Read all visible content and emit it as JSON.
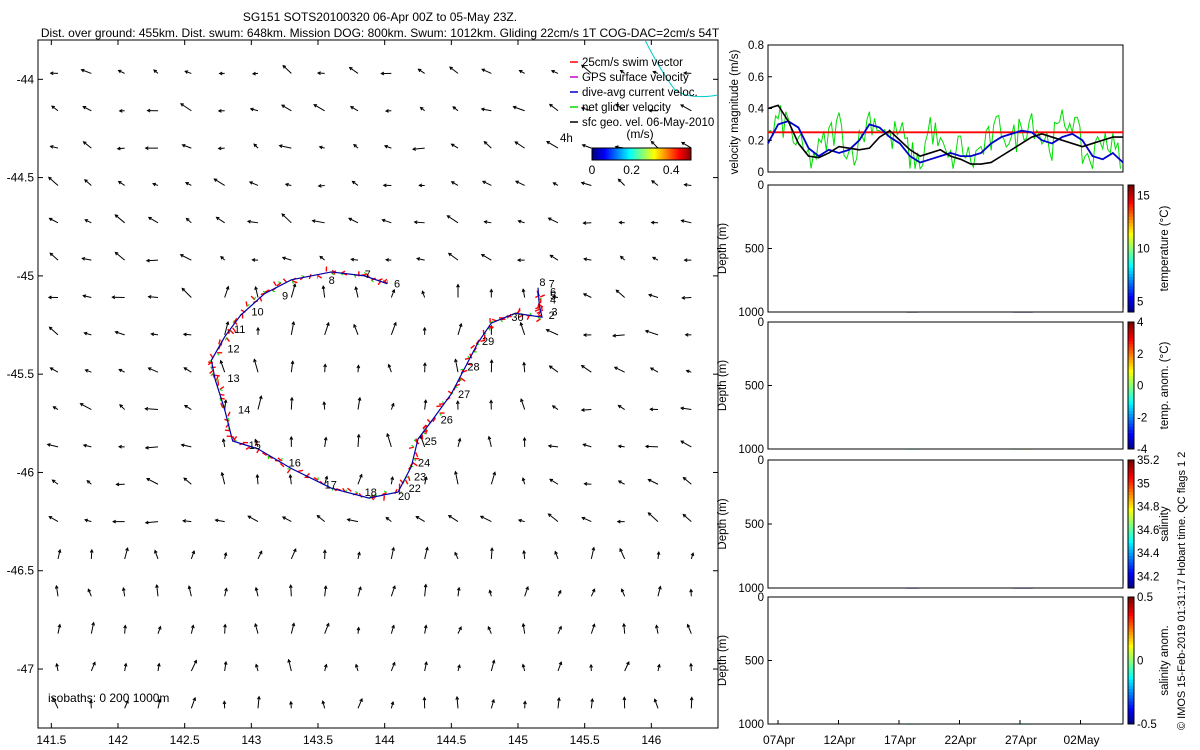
{
  "title": {
    "line1": "SG151 SOTS20100320 06-Apr 00Z to 05-May 23Z.",
    "line2": "Dist. over ground: 455km. Dist. swum: 648km. Mission DOG: 800km. Swum: 1012km. Gliding 22cm/s 1T COG-DAC=2cm/s 54T"
  },
  "credit": "© IMOS 15-Feb-2019 01:31:17 Hobart time. QC flags 1  2",
  "colors": {
    "swim_vector": "#ff0000",
    "gps_surface_velocity": "#cc00cc",
    "dive_avg_current": "#0000cc",
    "net_glider_velocity": "#00dd00",
    "sfc_geo_velocity": "#000000",
    "track": "#0000aa",
    "mean_line": "#ff0000",
    "smooth_line": "#000000",
    "isobath": "#00cccc"
  },
  "chart_data": [
    {
      "type": "scatter",
      "name": "map",
      "xlim": [
        141.4,
        146.5
      ],
      "ylim": [
        -47.3,
        -43.8
      ],
      "x_ticks": [
        "141.5",
        "142",
        "142.5",
        "143",
        "143.5",
        "144",
        "144.5",
        "145",
        "145.5",
        "146"
      ],
      "y_ticks": [
        "-44",
        "-44.5",
        "-45",
        "-45.5",
        "-46",
        "-46.5",
        "-47"
      ],
      "legend": {
        "placement": "top-right",
        "entries": [
          "25cm/s swim vector",
          "GPS surface velocity",
          "dive-avg current veloc.",
          "net glider velocity",
          "sfc geo. vel. 06-May-2010 4h"
        ]
      },
      "colorbar": {
        "label": "(m/s)",
        "ticks": [
          "0",
          "0.2",
          "0.4"
        ],
        "range": [
          0,
          0.5
        ]
      },
      "isobath_note": "isobaths: 0  200  1000m",
      "track": [
        [
          144.02,
          -45.04
        ],
        [
          143.85,
          -45.0
        ],
        [
          143.6,
          -44.98
        ],
        [
          143.3,
          -45.02
        ],
        [
          143.1,
          -45.09
        ],
        [
          142.92,
          -45.2
        ],
        [
          142.8,
          -45.31
        ],
        [
          142.7,
          -45.43
        ],
        [
          142.73,
          -45.53
        ],
        [
          142.8,
          -45.68
        ],
        [
          142.86,
          -45.84
        ],
        [
          143.05,
          -45.88
        ],
        [
          143.3,
          -45.98
        ],
        [
          143.6,
          -46.08
        ],
        [
          143.88,
          -46.13
        ],
        [
          144.1,
          -46.1
        ],
        [
          144.2,
          -45.97
        ],
        [
          144.25,
          -45.83
        ],
        [
          144.35,
          -45.74
        ],
        [
          144.5,
          -45.6
        ],
        [
          144.6,
          -45.47
        ],
        [
          144.7,
          -45.34
        ],
        [
          144.8,
          -45.24
        ],
        [
          144.98,
          -45.19
        ],
        [
          145.18,
          -45.21
        ],
        [
          145.16,
          -45.15
        ],
        [
          145.15,
          -45.06
        ]
      ],
      "day_labels": [
        {
          "t": "2",
          "x": 145.23,
          "y": -45.2
        },
        {
          "t": "3",
          "x": 145.25,
          "y": -45.18
        },
        {
          "t": "4",
          "x": 145.24,
          "y": -45.12
        },
        {
          "t": "5",
          "x": 145.24,
          "y": -45.1
        },
        {
          "t": "6",
          "x": 145.24,
          "y": -45.08
        },
        {
          "t": "7",
          "x": 145.23,
          "y": -45.04
        },
        {
          "t": "8",
          "x": 145.16,
          "y": -45.03
        },
        {
          "t": "6",
          "x": 144.07,
          "y": -45.04
        },
        {
          "t": "7",
          "x": 143.85,
          "y": -44.99
        },
        {
          "t": "8",
          "x": 143.58,
          "y": -45.02
        },
        {
          "t": "9",
          "x": 143.23,
          "y": -45.1
        },
        {
          "t": "10",
          "x": 143.0,
          "y": -45.18
        },
        {
          "t": "11",
          "x": 142.87,
          "y": -45.27
        },
        {
          "t": "12",
          "x": 142.82,
          "y": -45.37
        },
        {
          "t": "13",
          "x": 142.82,
          "y": -45.52
        },
        {
          "t": "14",
          "x": 142.9,
          "y": -45.68
        },
        {
          "t": "15",
          "x": 142.98,
          "y": -45.86
        },
        {
          "t": "16",
          "x": 143.28,
          "y": -45.95
        },
        {
          "t": "17",
          "x": 143.55,
          "y": -46.06
        },
        {
          "t": "18",
          "x": 143.85,
          "y": -46.1
        },
        {
          "t": "20",
          "x": 144.1,
          "y": -46.12
        },
        {
          "t": "22",
          "x": 144.18,
          "y": -46.08
        },
        {
          "t": "23",
          "x": 144.22,
          "y": -46.02
        },
        {
          "t": "24",
          "x": 144.25,
          "y": -45.95
        },
        {
          "t": "25",
          "x": 144.3,
          "y": -45.84
        },
        {
          "t": "26",
          "x": 144.42,
          "y": -45.73
        },
        {
          "t": "27",
          "x": 144.55,
          "y": -45.6
        },
        {
          "t": "28",
          "x": 144.62,
          "y": -45.46
        },
        {
          "t": "29",
          "x": 144.73,
          "y": -45.33
        },
        {
          "t": "30",
          "x": 144.95,
          "y": -45.21
        }
      ]
    },
    {
      "type": "line",
      "name": "velocity",
      "ylabel": "velocity magnitude (m/s)",
      "xlim": [
        0,
        44
      ],
      "ylim": [
        0,
        0.8
      ],
      "y_ticks": [
        "0",
        "0.2",
        "0.4",
        "0.6",
        "0.8"
      ],
      "mean_value": 0.25,
      "series": [
        {
          "values": [
            0.18,
            0.3,
            0.32,
            0.28,
            0.15,
            0.1,
            0.14,
            0.12,
            0.14,
            0.2,
            0.3,
            0.28,
            0.22,
            0.18,
            0.1,
            0.06,
            0.08,
            0.1,
            0.12,
            0.1,
            0.1,
            0.12,
            0.18,
            0.22,
            0.24,
            0.26,
            0.25,
            0.2,
            0.18,
            0.22,
            0.24,
            0.2,
            0.1,
            0.08,
            0.12,
            0.06
          ]
        },
        {
          "values": [
            0.4,
            0.42,
            0.32,
            0.18,
            0.1,
            0.09,
            0.12,
            0.16,
            0.15,
            0.14,
            0.15,
            0.22,
            0.26,
            0.2,
            0.14,
            0.1,
            0.12,
            0.14,
            0.1,
            0.08,
            0.05,
            0.05,
            0.06,
            0.1,
            0.14,
            0.18,
            0.22,
            0.24,
            0.22,
            0.2,
            0.18,
            0.16,
            0.18,
            0.2,
            0.22,
            0.22
          ]
        },
        {
          "values": [
            0.2,
            0.32,
            0.3,
            0.15,
            0.08,
            0.12,
            0.22,
            0.3,
            0.12,
            0.18,
            0.35,
            0.3,
            0.2,
            0.26,
            0.1,
            0.04,
            0.3,
            0.15,
            0.05,
            0.18,
            0.06,
            0.14,
            0.2,
            0.3,
            0.18,
            0.28,
            0.35,
            0.22,
            0.18,
            0.3,
            0.35,
            0.12,
            0.08,
            0.25,
            0.15,
            0.05
          ]
        }
      ]
    },
    {
      "type": "heatmap",
      "name": "temperature",
      "ylabel": "Depth (m)",
      "ylim": [
        0,
        1000
      ],
      "y_ticks": [
        "0",
        "500",
        "1000"
      ],
      "colorbar": {
        "label": "temperature (°C)",
        "ticks": [
          "15",
          "10",
          "5"
        ],
        "range": [
          4,
          16
        ]
      }
    },
    {
      "type": "heatmap",
      "name": "temperature_anomaly",
      "ylabel": "Depth (m)",
      "ylim": [
        0,
        1000
      ],
      "y_ticks": [
        "0",
        "500",
        "1000"
      ],
      "colorbar": {
        "label": "temp. anom. (°C)",
        "ticks": [
          "4",
          "2",
          "0",
          "-2",
          "-4"
        ],
        "range": [
          -4,
          4
        ]
      }
    },
    {
      "type": "heatmap",
      "name": "salinity",
      "ylabel": "Depth (m)",
      "ylim": [
        0,
        1000
      ],
      "y_ticks": [
        "0",
        "500",
        "1000"
      ],
      "colorbar": {
        "label": "salinity",
        "ticks": [
          "35.2",
          "35",
          "34.8",
          "34.6",
          "34.4",
          "34.2"
        ],
        "range": [
          34.1,
          35.2
        ]
      }
    },
    {
      "type": "heatmap",
      "name": "salinity_anomaly",
      "ylabel": "Depth (m)",
      "ylim": [
        0,
        1000
      ],
      "y_ticks": [
        "0",
        "500",
        "1000"
      ],
      "x_ticks": [
        "07Apr",
        "12Apr",
        "17Apr",
        "22Apr",
        "27Apr",
        "02May"
      ],
      "colorbar": {
        "label": "salinity anom.",
        "ticks": [
          "0.5",
          "0",
          "-0.5"
        ],
        "range": [
          -0.5,
          0.5
        ]
      }
    }
  ]
}
